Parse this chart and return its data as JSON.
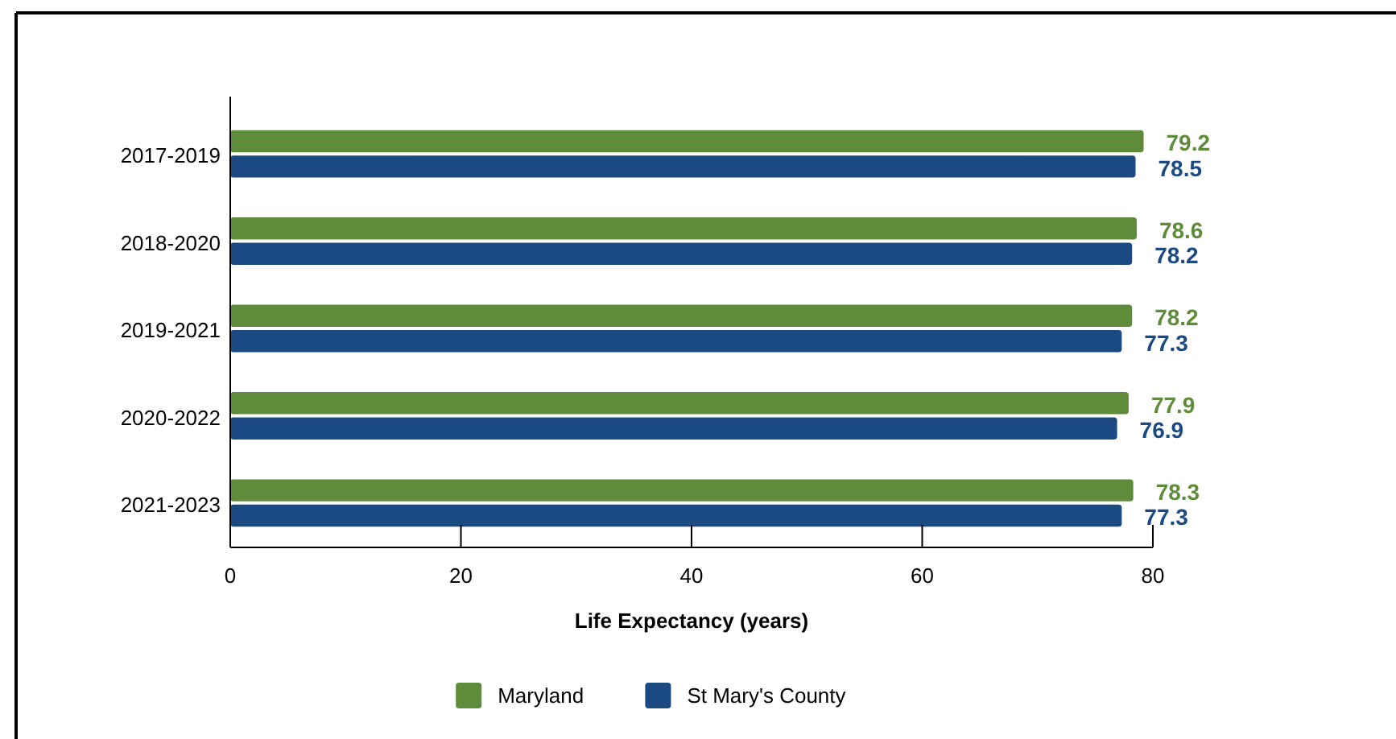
{
  "chart_data": {
    "type": "bar",
    "orientation": "horizontal",
    "xlabel": "Life Expectancy (years)",
    "categories": [
      "2017-2019",
      "2018-2020",
      "2019-2021",
      "2020-2022",
      "2021-2023"
    ],
    "series": [
      {
        "name": "Maryland",
        "color": "#5e8c3a",
        "values": [
          79.2,
          78.6,
          78.2,
          77.9,
          78.3
        ]
      },
      {
        "name": "St Mary's County",
        "color": "#1b4a83",
        "values": [
          78.5,
          78.2,
          77.3,
          76.9,
          77.3
        ]
      }
    ],
    "xlim": [
      0,
      80
    ],
    "xticks": [
      0,
      20,
      40,
      60,
      80
    ],
    "data_labels": true,
    "grid": false,
    "legend": "bottom"
  }
}
